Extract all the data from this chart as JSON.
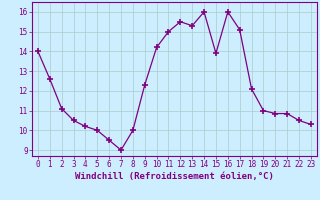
{
  "x": [
    0,
    1,
    2,
    3,
    4,
    5,
    6,
    7,
    8,
    9,
    10,
    11,
    12,
    13,
    14,
    15,
    16,
    17,
    18,
    19,
    20,
    21,
    22,
    23
  ],
  "y": [
    14.0,
    12.6,
    11.1,
    10.5,
    10.2,
    10.0,
    9.5,
    9.0,
    10.0,
    12.3,
    14.2,
    15.0,
    15.5,
    15.3,
    16.0,
    13.9,
    16.0,
    15.1,
    12.1,
    11.0,
    10.85,
    10.85,
    10.5,
    10.3
  ],
  "line_color": "#800080",
  "marker": "+",
  "marker_size": 5,
  "background_color": "#cceeff",
  "grid_color": "#aacccc",
  "xlabel": "Windchill (Refroidissement éolien,°C)",
  "ylim": [
    8.7,
    16.5
  ],
  "xlim": [
    -0.5,
    23.5
  ],
  "yticks": [
    9,
    10,
    11,
    12,
    13,
    14,
    15,
    16
  ],
  "xticks": [
    0,
    1,
    2,
    3,
    4,
    5,
    6,
    7,
    8,
    9,
    10,
    11,
    12,
    13,
    14,
    15,
    16,
    17,
    18,
    19,
    20,
    21,
    22,
    23
  ],
  "tick_fontsize": 5.5,
  "xlabel_fontsize": 6.5
}
